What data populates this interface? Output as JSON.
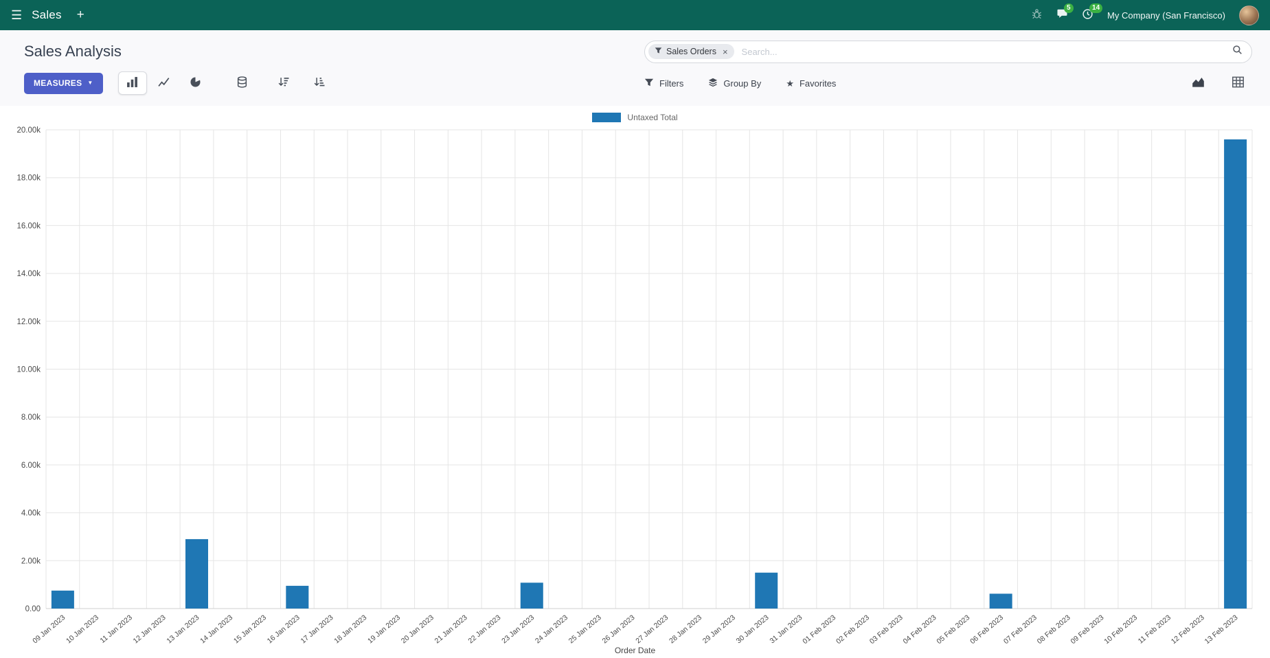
{
  "navbar": {
    "app_title": "Sales",
    "company": "My Company (San Francisco)",
    "message_badge": "5",
    "activity_badge": "14"
  },
  "control_panel": {
    "title": "Sales Analysis",
    "measures_label": "MEASURES",
    "search": {
      "facet": "Sales Orders",
      "placeholder": "Search..."
    },
    "filters_label": "Filters",
    "group_by_label": "Group By",
    "favorites_label": "Favorites"
  },
  "icons": {
    "hamburger": "☰",
    "plus": "+",
    "caret_down": "▼",
    "close": "×",
    "star": "★"
  },
  "colors": {
    "navbar": "#0b6357",
    "primary_button": "#4e5fc8",
    "badge": "#3bb143",
    "bar": "#1f77b4"
  },
  "chart_data": {
    "type": "bar",
    "title": "",
    "xlabel": "Order Date",
    "ylabel": "",
    "legend_position": "top-center",
    "grid": true,
    "ylim": [
      0,
      20000
    ],
    "y_ticks": [
      {
        "v": 0,
        "label": "0.00"
      },
      {
        "v": 2000,
        "label": "2.00k"
      },
      {
        "v": 4000,
        "label": "4.00k"
      },
      {
        "v": 6000,
        "label": "6.00k"
      },
      {
        "v": 8000,
        "label": "8.00k"
      },
      {
        "v": 10000,
        "label": "10.00k"
      },
      {
        "v": 12000,
        "label": "12.00k"
      },
      {
        "v": 14000,
        "label": "14.00k"
      },
      {
        "v": 16000,
        "label": "16.00k"
      },
      {
        "v": 18000,
        "label": "18.00k"
      },
      {
        "v": 20000,
        "label": "20.00k"
      }
    ],
    "categories": [
      "09 Jan 2023",
      "10 Jan 2023",
      "11 Jan 2023",
      "12 Jan 2023",
      "13 Jan 2023",
      "14 Jan 2023",
      "15 Jan 2023",
      "16 Jan 2023",
      "17 Jan 2023",
      "18 Jan 2023",
      "19 Jan 2023",
      "20 Jan 2023",
      "21 Jan 2023",
      "22 Jan 2023",
      "23 Jan 2023",
      "24 Jan 2023",
      "25 Jan 2023",
      "26 Jan 2023",
      "27 Jan 2023",
      "28 Jan 2023",
      "29 Jan 2023",
      "30 Jan 2023",
      "31 Jan 2023",
      "01 Feb 2023",
      "02 Feb 2023",
      "03 Feb 2023",
      "04 Feb 2023",
      "05 Feb 2023",
      "06 Feb 2023",
      "07 Feb 2023",
      "08 Feb 2023",
      "09 Feb 2023",
      "10 Feb 2023",
      "11 Feb 2023",
      "12 Feb 2023",
      "13 Feb 2023"
    ],
    "series": [
      {
        "name": "Untaxed Total",
        "color": "#1f77b4",
        "values": [
          750,
          0,
          0,
          0,
          2900,
          0,
          0,
          950,
          0,
          0,
          0,
          0,
          0,
          0,
          1080,
          0,
          0,
          0,
          0,
          0,
          0,
          1500,
          0,
          0,
          0,
          0,
          0,
          0,
          620,
          0,
          0,
          0,
          0,
          0,
          0,
          19600
        ]
      }
    ]
  }
}
